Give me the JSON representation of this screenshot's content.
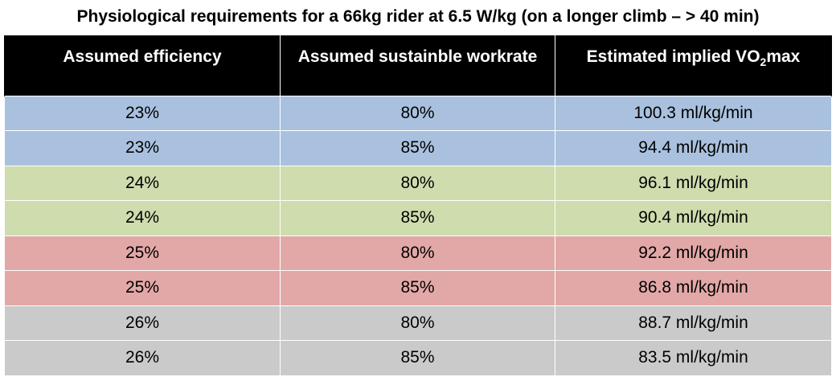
{
  "title": "Physiological requirements for a 66kg rider at 6.5 W/kg (on a longer climb – > 40 min)",
  "columns": {
    "efficiency": "Assumed efficiency",
    "workrate": "Assumed sustainble workrate",
    "vo2_prefix": "Estimated implied VO",
    "vo2_sub": "2",
    "vo2_suffix": "max"
  },
  "rows": [
    {
      "efficiency": "23%",
      "workrate": "80%",
      "vo2max": "100.3 ml/kg/min",
      "color": "#a9c1de"
    },
    {
      "efficiency": "23%",
      "workrate": "85%",
      "vo2max": "94.4 ml/kg/min",
      "color": "#a9c1de"
    },
    {
      "efficiency": "24%",
      "workrate": "80%",
      "vo2max": "96.1 ml/kg/min",
      "color": "#cfdcae"
    },
    {
      "efficiency": "24%",
      "workrate": "85%",
      "vo2max": "90.4 ml/kg/min",
      "color": "#cfdcae"
    },
    {
      "efficiency": "25%",
      "workrate": "80%",
      "vo2max": "92.2 ml/kg/min",
      "color": "#e2a8a7"
    },
    {
      "efficiency": "25%",
      "workrate": "85%",
      "vo2max": "86.8 ml/kg/min",
      "color": "#e2a8a7"
    },
    {
      "efficiency": "26%",
      "workrate": "80%",
      "vo2max": "88.7 ml/kg/min",
      "color": "#cacaca"
    },
    {
      "efficiency": "26%",
      "workrate": "85%",
      "vo2max": "83.5 ml/kg/min",
      "color": "#cacaca"
    }
  ]
}
